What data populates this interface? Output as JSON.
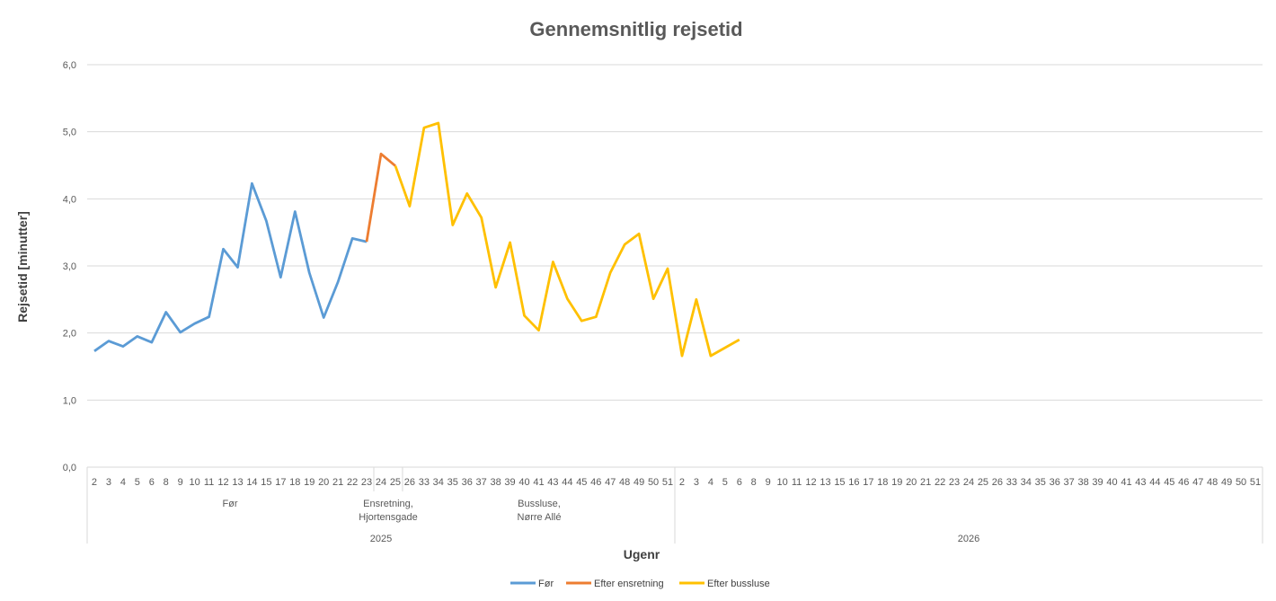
{
  "chart_data": {
    "type": "line",
    "title": "Gennemsnitlig rejsetid",
    "xlabel": "Ugenr",
    "ylabel": "Rejsetid [minutter]",
    "ylim": [
      0,
      6
    ],
    "yticks": [
      "0,0",
      "1,0",
      "2,0",
      "3,0",
      "4,0",
      "5,0",
      "6,0"
    ],
    "grid": "horizontal",
    "legend_position": "bottom",
    "years": [
      {
        "label": "2025",
        "weeks": [
          "2",
          "3",
          "4",
          "5",
          "6",
          "8",
          "9",
          "10",
          "11",
          "12",
          "13",
          "14",
          "15",
          "17",
          "18",
          "19",
          "20",
          "21",
          "22",
          "23",
          "24",
          "25",
          "26",
          "33",
          "34",
          "35",
          "36",
          "37",
          "38",
          "39",
          "40",
          "41",
          "43",
          "44",
          "45",
          "46",
          "47",
          "48",
          "49",
          "50",
          "51"
        ]
      },
      {
        "label": "2026",
        "weeks": [
          "2",
          "3",
          "4",
          "5",
          "6",
          "8",
          "9",
          "10",
          "11",
          "12",
          "13",
          "15",
          "16",
          "17",
          "18",
          "19",
          "20",
          "21",
          "22",
          "23",
          "24",
          "25",
          "26",
          "33",
          "34",
          "35",
          "36",
          "37",
          "38",
          "39",
          "40",
          "41",
          "43",
          "44",
          "45",
          "46",
          "47",
          "48",
          "49",
          "50",
          "51"
        ]
      }
    ],
    "phases": [
      {
        "lines": [
          "Før"
        ]
      },
      {
        "lines": [
          "Ensretning,",
          "Hjortensgade"
        ]
      },
      {
        "lines": [
          "Bussluse,",
          "Nørre Allé"
        ]
      }
    ],
    "series": [
      {
        "name": "Før",
        "color": "#5B9BD5",
        "start_index": 0,
        "values": [
          1.73,
          1.88,
          1.8,
          1.95,
          1.86,
          2.31,
          2.01,
          2.14,
          2.24,
          3.25,
          2.98,
          4.23,
          3.67,
          2.83,
          3.81,
          2.9,
          2.23,
          2.76,
          3.41,
          3.36
        ]
      },
      {
        "name": "Efter ensretning",
        "color": "#ED7D31",
        "start_index": 19,
        "values": [
          3.36,
          4.67,
          4.49
        ]
      },
      {
        "name": "Efter bussluse",
        "color": "#FFC000",
        "start_index": 21,
        "values": [
          4.49,
          3.89,
          5.06,
          5.13,
          3.61,
          4.08,
          3.72,
          2.68,
          3.35,
          2.26,
          2.04,
          3.06,
          2.51,
          2.18,
          2.24,
          2.9,
          3.32,
          3.48,
          2.51,
          2.96,
          1.66,
          2.5,
          1.66,
          1.78,
          1.9
        ]
      }
    ]
  }
}
